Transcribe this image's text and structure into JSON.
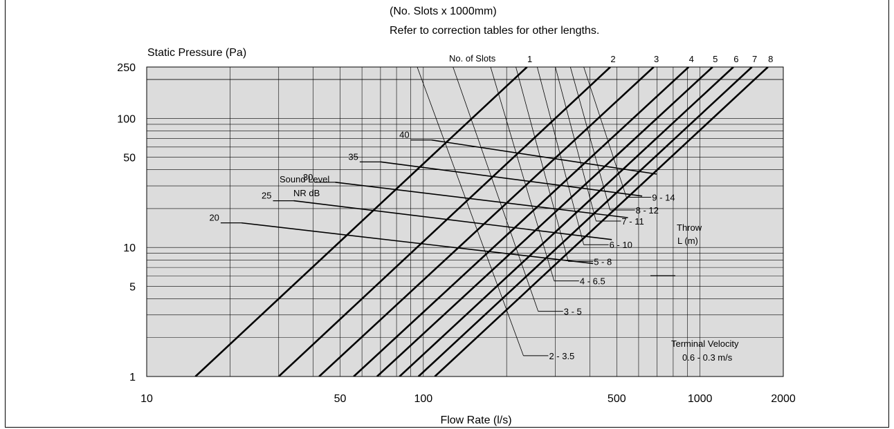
{
  "chart_data": {
    "type": "line",
    "header_line1": "(No. Slots x 1000mm)",
    "header_line2": "Refer to correction tables for other lengths.",
    "ylabel": "Static Pressure (Pa)",
    "xlabel": "Flow Rate (l/s)",
    "x_scale": "log",
    "y_scale": "log",
    "xlim": [
      10,
      2000
    ],
    "ylim": [
      1,
      250
    ],
    "grid": true,
    "x_tick_labels": [
      "10",
      "50",
      "100",
      "500",
      "1000",
      "2000"
    ],
    "y_tick_labels": [
      "250",
      "100",
      "50",
      "10",
      "5",
      "1"
    ],
    "slots_title": "No. of Slots",
    "slot_lines": [
      {
        "label": "1",
        "x_at_y1": 15,
        "x_at_y250": 237
      },
      {
        "label": "2",
        "x_at_y1": 30,
        "x_at_y250": 474
      },
      {
        "label": "3",
        "x_at_y1": 42,
        "x_at_y250": 680
      },
      {
        "label": "4",
        "x_at_y1": 56,
        "x_at_y250": 910
      },
      {
        "label": "5",
        "x_at_y1": 68,
        "x_at_y250": 1110
      },
      {
        "label": "6",
        "x_at_y1": 82,
        "x_at_y250": 1320
      },
      {
        "label": "7",
        "x_at_y1": 96,
        "x_at_y250": 1540
      },
      {
        "label": "8",
        "x_at_y1": 110,
        "x_at_y250": 1760
      }
    ],
    "sound_level_title_1": "Sound Level",
    "sound_level_title_2": "NR dB",
    "sound_levels": [
      {
        "label": "20",
        "x": [
          22,
          411
        ],
        "y": [
          15.5,
          7.5
        ]
      },
      {
        "label": "25",
        "x": [
          34,
          480
        ],
        "y": [
          23,
          11.5
        ]
      },
      {
        "label": "30",
        "x": [
          48,
          549
        ],
        "y": [
          32,
          17
        ]
      },
      {
        "label": "35",
        "x": [
          70,
          618
        ],
        "y": [
          46,
          25
        ]
      },
      {
        "label": "40",
        "x": [
          107,
          697
        ],
        "y": [
          68,
          37
        ]
      }
    ],
    "throw_title_1": "Throw",
    "throw_title_2": "L (m)",
    "throws": [
      {
        "label": "2 - 3.5",
        "tx": 95,
        "ty": 250,
        "bx": 230,
        "by": 1.45
      },
      {
        "label": "3 - 5",
        "tx": 128,
        "ty": 250,
        "bx": 260,
        "by": 3.2
      },
      {
        "label": "4 - 6.5",
        "tx": 175,
        "ty": 250,
        "bx": 297,
        "by": 5.5
      },
      {
        "label": "5 - 8",
        "tx": 216,
        "ty": 250,
        "bx": 334,
        "by": 7.8
      },
      {
        "label": "6 - 10",
        "tx": 258,
        "ty": 250,
        "bx": 380,
        "by": 10.5
      },
      {
        "label": "7 - 11",
        "tx": 300,
        "ty": 250,
        "bx": 421,
        "by": 16
      },
      {
        "label": "8 - 12",
        "tx": 340,
        "ty": 250,
        "bx": 473,
        "by": 19.5
      },
      {
        "label": "9 - 14",
        "tx": 380,
        "ty": 250,
        "bx": 542,
        "by": 24.5
      }
    ],
    "terminal_velocity_1": "Terminal Velocity",
    "terminal_velocity_2": "0.6 - 0.3 m/s"
  }
}
